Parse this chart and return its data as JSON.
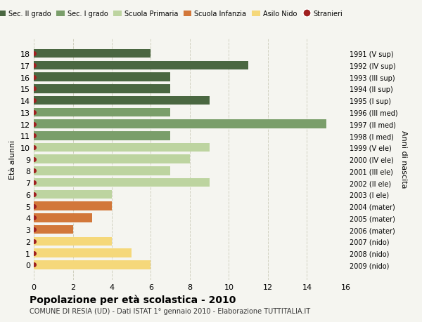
{
  "ages": [
    18,
    17,
    16,
    15,
    14,
    13,
    12,
    11,
    10,
    9,
    8,
    7,
    6,
    5,
    4,
    3,
    2,
    1,
    0
  ],
  "values": [
    6,
    11,
    7,
    7,
    9,
    7,
    15,
    7,
    9,
    8,
    7,
    9,
    4,
    4,
    3,
    2,
    4,
    5,
    6
  ],
  "right_labels": [
    "1991 (V sup)",
    "1992 (IV sup)",
    "1993 (III sup)",
    "1994 (II sup)",
    "1995 (I sup)",
    "1996 (III med)",
    "1997 (II med)",
    "1998 (I med)",
    "1999 (V ele)",
    "2000 (IV ele)",
    "2001 (III ele)",
    "2002 (II ele)",
    "2003 (I ele)",
    "2004 (mater)",
    "2005 (mater)",
    "2006 (mater)",
    "2007 (nido)",
    "2008 (nido)",
    "2009 (nido)"
  ],
  "bar_colors": [
    "#4a6741",
    "#4a6741",
    "#4a6741",
    "#4a6741",
    "#4a6741",
    "#7a9e6a",
    "#7a9e6a",
    "#7a9e6a",
    "#bdd4a0",
    "#bdd4a0",
    "#bdd4a0",
    "#bdd4a0",
    "#bdd4a0",
    "#d2773a",
    "#d2773a",
    "#d2773a",
    "#f5d87a",
    "#f5d87a",
    "#f5d87a"
  ],
  "dot_color": "#a02020",
  "legend_labels": [
    "Sec. II grado",
    "Sec. I grado",
    "Scuola Primaria",
    "Scuola Infanzia",
    "Asilo Nido",
    "Stranieri"
  ],
  "legend_colors": [
    "#4a6741",
    "#7a9e6a",
    "#bdd4a0",
    "#d2773a",
    "#f5d87a",
    "#a02020"
  ],
  "legend_marker_types": [
    "s",
    "s",
    "s",
    "s",
    "s",
    "o"
  ],
  "xlabel": "",
  "ylabel": "Età alunni",
  "right_ylabel": "Anni di nascita",
  "title": "Popolazione per età scolastica - 2010",
  "subtitle": "COMUNE DI RESIA (UD) - Dati ISTAT 1° gennaio 2010 - Elaborazione TUTTITALIA.IT",
  "xlim": [
    0,
    16
  ],
  "xticks": [
    0,
    2,
    4,
    6,
    8,
    10,
    12,
    14,
    16
  ],
  "bg_color": "#f5f5f0",
  "grid_color": "#d0d0c0",
  "bar_height": 0.75
}
